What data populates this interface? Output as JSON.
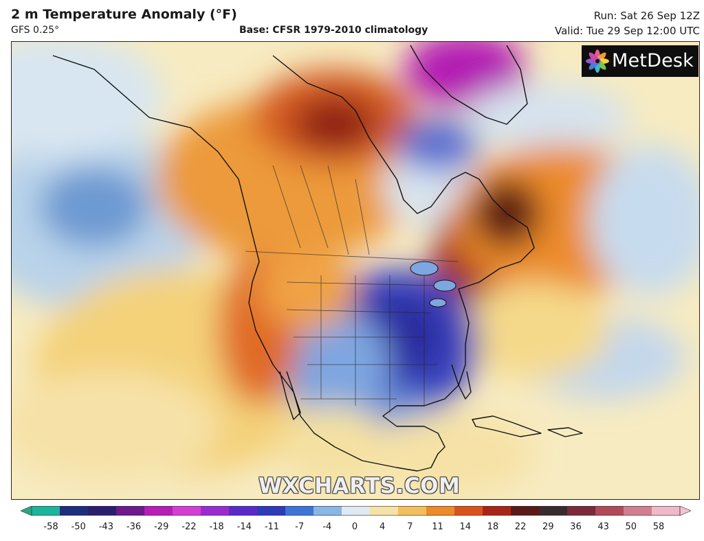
{
  "header": {
    "title": "2 m Temperature Anomaly (°F)",
    "model": "GFS 0.25°",
    "base": "Base: CFSR 1979-2010 climatology",
    "run": "Run: Sat 26 Sep 12Z",
    "valid": "Valid: Tue 29 Sep 12:00 UTC"
  },
  "logo": {
    "text": "MetDesk",
    "icon": "metdesk-flower-logo"
  },
  "watermark": "WXCHARTS.COM",
  "colorbar": {
    "ticks": [
      "-58",
      "-50",
      "-43",
      "-36",
      "-29",
      "-22",
      "-18",
      "-14",
      "-11",
      "-7",
      "-4",
      "0",
      "4",
      "7",
      "11",
      "14",
      "18",
      "22",
      "29",
      "36",
      "43",
      "50",
      "58"
    ],
    "colors": [
      "#1bb59a",
      "#1d2e7a",
      "#2a1f6e",
      "#6d1a8a",
      "#b51fb5",
      "#d23fd2",
      "#9a2bd0",
      "#5a2ac9",
      "#2d3bb8",
      "#3f73d6",
      "#8ab6e6",
      "#dfeaf3",
      "#f6e2a6",
      "#f3bf5c",
      "#ec8b2a",
      "#d9531f",
      "#a82618",
      "#5a1a17",
      "#3a2b2e",
      "#7a2a3a",
      "#b04a5a",
      "#d17f90",
      "#f0b9c8"
    ],
    "arrow_left_color": "#2aa683",
    "arrow_right_color": "#f4c3d3"
  },
  "map": {
    "regions": "North America, North Pacific, North Atlantic",
    "anomaly_colors": {
      "cold_deep": "#2f2bb0",
      "cold": "#5c86d6",
      "cool": "#c7dbee",
      "neutral": "#f4f0dc",
      "warm_light": "#f5d98a",
      "warm": "#f0a245",
      "hot": "#d85a22",
      "very_hot": "#8e2116",
      "extreme_magenta": "#b51fb5"
    }
  }
}
